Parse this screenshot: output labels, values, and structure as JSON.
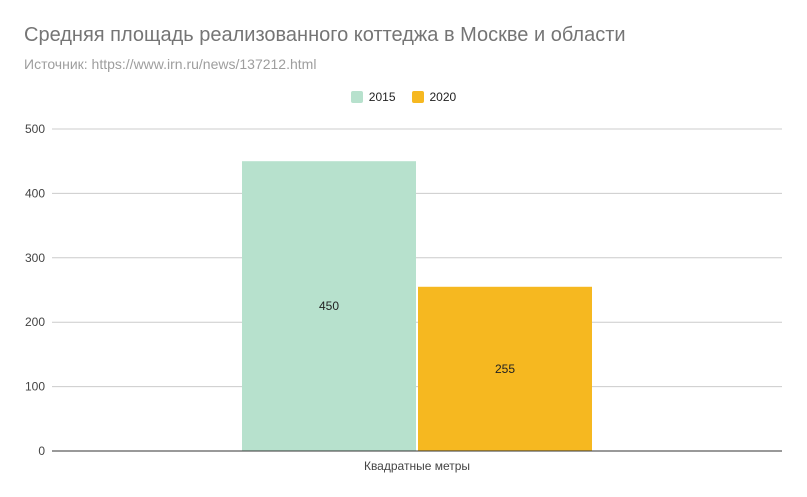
{
  "chart_data": {
    "type": "bar",
    "title": "Средняя площадь реализованного коттеджа в Москве и области",
    "subtitle": "Источник: https://www.irn.ru/news/137212.html",
    "categories": [
      "Квадратные метры"
    ],
    "series": [
      {
        "name": "2015",
        "values": [
          450
        ],
        "color": "#b7e1cd"
      },
      {
        "name": "2020",
        "values": [
          255
        ],
        "color": "#f6b820"
      }
    ],
    "ylim": [
      0,
      500
    ],
    "yticks": [
      "0",
      "100",
      "200",
      "300",
      "400",
      "500"
    ],
    "grid": true,
    "legend": "top-center",
    "data_labels": [
      "450",
      "255"
    ]
  }
}
